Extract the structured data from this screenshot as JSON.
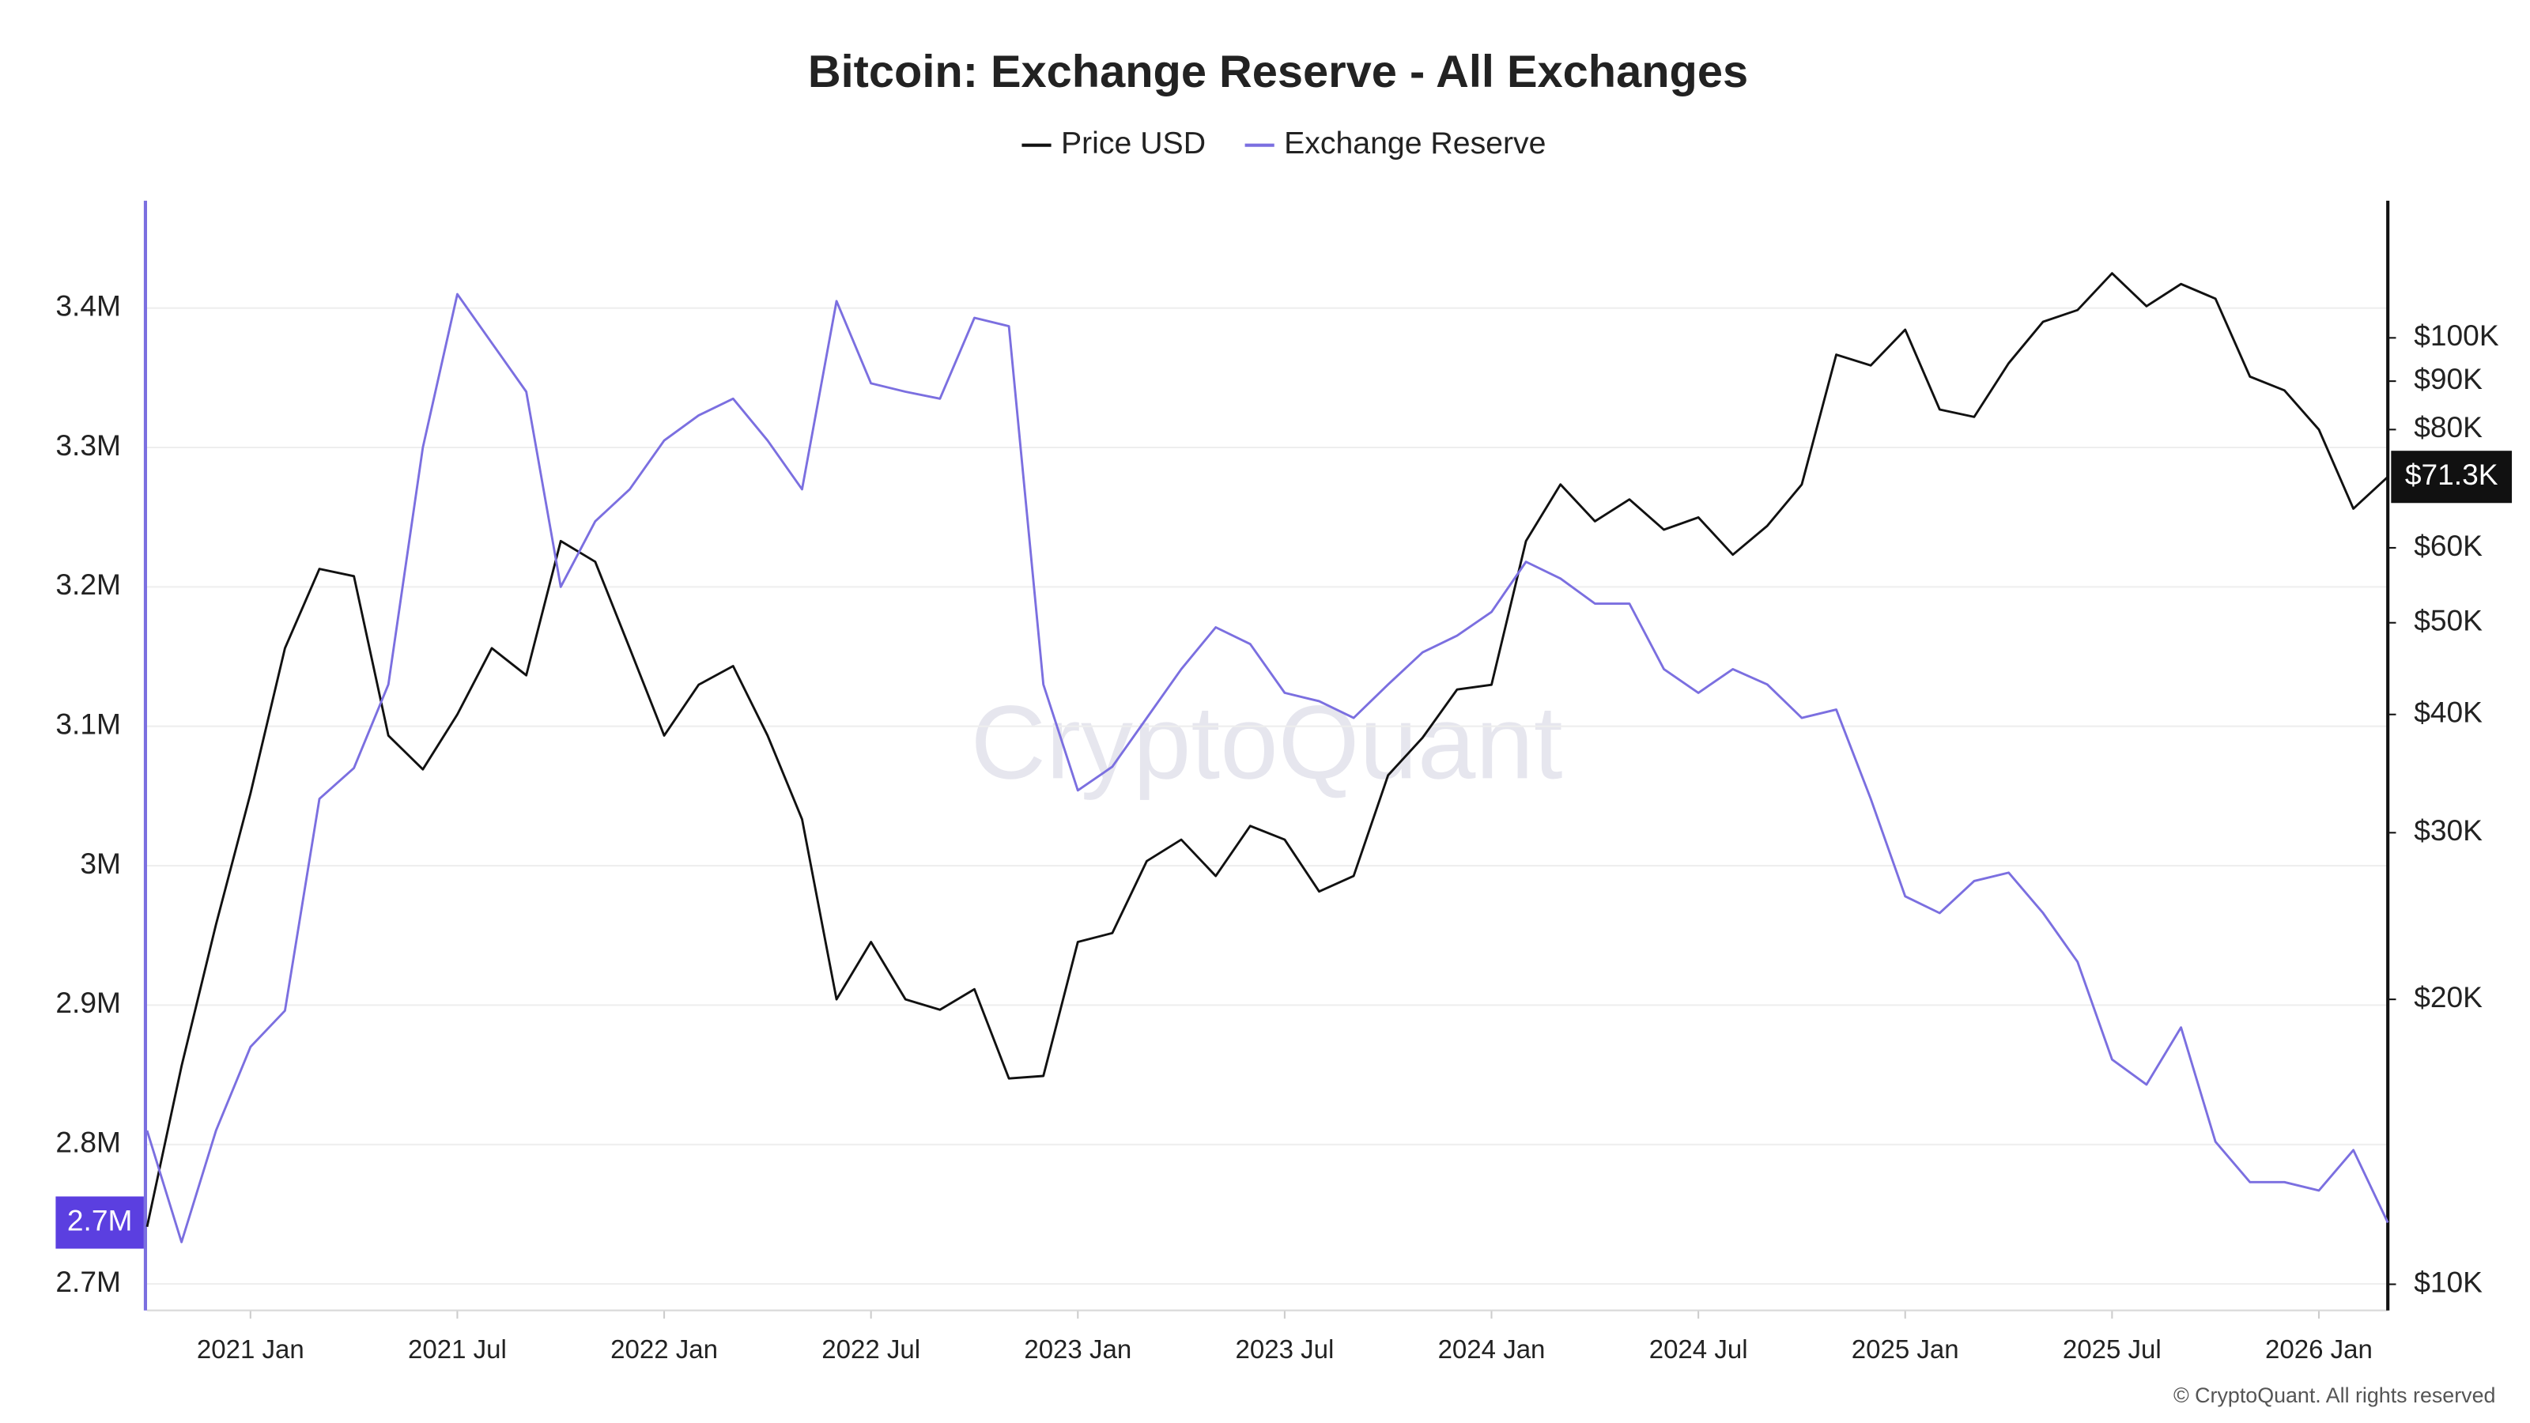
{
  "chart_data": {
    "type": "line",
    "title": "Bitcoin: Exchange Reserve - All Exchanges",
    "watermark": "CryptoQuant",
    "footer": "© CryptoQuant. All rights reserved",
    "x": [
      "2020-10",
      "2020-11",
      "2020-12",
      "2021-01",
      "2021-02",
      "2021-03",
      "2021-04",
      "2021-05",
      "2021-06",
      "2021-07",
      "2021-08",
      "2021-09",
      "2021-10",
      "2021-11",
      "2021-12",
      "2022-01",
      "2022-02",
      "2022-03",
      "2022-04",
      "2022-05",
      "2022-06",
      "2022-07",
      "2022-08",
      "2022-09",
      "2022-10",
      "2022-11",
      "2022-12",
      "2023-01",
      "2023-02",
      "2023-03",
      "2023-04",
      "2023-05",
      "2023-06",
      "2023-07",
      "2023-08",
      "2023-09",
      "2023-10",
      "2023-11",
      "2023-12",
      "2024-01",
      "2024-02",
      "2024-03",
      "2024-04",
      "2024-05",
      "2024-06",
      "2024-07",
      "2024-08",
      "2024-09",
      "2024-10",
      "2024-11",
      "2024-12",
      "2025-01",
      "2025-02",
      "2025-03",
      "2025-04",
      "2025-05",
      "2025-06",
      "2025-07",
      "2025-08",
      "2025-09",
      "2025-10",
      "2025-11",
      "2025-12",
      "2026-01",
      "2026-02",
      "2026-03"
    ],
    "xlim": [
      "2020-10",
      "2026-03"
    ],
    "xticks": [
      {
        "value": "2021-01",
        "label": "2021 Jan"
      },
      {
        "value": "2021-07",
        "label": "2021 Jul"
      },
      {
        "value": "2022-01",
        "label": "2022 Jan"
      },
      {
        "value": "2022-07",
        "label": "2022 Jul"
      },
      {
        "value": "2023-01",
        "label": "2023 Jan"
      },
      {
        "value": "2023-07",
        "label": "2023 Jul"
      },
      {
        "value": "2024-01",
        "label": "2024 Jan"
      },
      {
        "value": "2024-07",
        "label": "2024 Jul"
      },
      {
        "value": "2025-01",
        "label": "2025 Jan"
      },
      {
        "value": "2025-07",
        "label": "2025 Jul"
      },
      {
        "value": "2026-01",
        "label": "2026 Jan"
      }
    ],
    "ylim": [
      2681000,
      3477000
    ],
    "yticks": [
      {
        "value": 2700000,
        "label": "2.7M"
      },
      {
        "value": 2800000,
        "label": "2.8M"
      },
      {
        "value": 2900000,
        "label": "2.9M"
      },
      {
        "value": 3000000,
        "label": "3M"
      },
      {
        "value": 3100000,
        "label": "3.1M"
      },
      {
        "value": 3200000,
        "label": "3.2M"
      },
      {
        "value": 3300000,
        "label": "3.3M"
      },
      {
        "value": 3400000,
        "label": "3.4M"
      }
    ],
    "y2lim": [
      9384,
      139600
    ],
    "y2log": true,
    "y2ticks": [
      {
        "value": 10000,
        "label": "$10K"
      },
      {
        "value": 20000,
        "label": "$20K"
      },
      {
        "value": 30000,
        "label": "$30K"
      },
      {
        "value": 40000,
        "label": "$40K"
      },
      {
        "value": 50000,
        "label": "$50K"
      },
      {
        "value": 60000,
        "label": "$60K"
      },
      {
        "value": 80000,
        "label": "$80K"
      },
      {
        "value": 90000,
        "label": "$90K"
      },
      {
        "value": 100000,
        "label": "$100K"
      }
    ],
    "grid": true,
    "legend": "top",
    "series": [
      {
        "name": "Price USD",
        "color": "#111111",
        "axis": "y2",
        "values": [
          11500,
          17000,
          24000,
          33000,
          47000,
          57000,
          56000,
          38000,
          35000,
          40000,
          47000,
          44000,
          61000,
          58000,
          47000,
          38000,
          43000,
          45000,
          38000,
          31000,
          20000,
          23000,
          20000,
          19500,
          20500,
          16500,
          16600,
          23000,
          23500,
          28000,
          29500,
          27000,
          30500,
          29500,
          26000,
          27000,
          34500,
          37800,
          42500,
          43000,
          61000,
          70000,
          64000,
          67500,
          62700,
          64600,
          59000,
          63300,
          70000,
          96000,
          93500,
          102000,
          84000,
          82500,
          94000,
          104000,
          107000,
          117000,
          108000,
          114000,
          110000,
          91000,
          88000,
          80000,
          66000,
          71300
        ],
        "value_labels": [
          null,
          null,
          null,
          null,
          null,
          null,
          null,
          null,
          null,
          null,
          null,
          null,
          null,
          null,
          null,
          null,
          null,
          null,
          null,
          null,
          null,
          null,
          null,
          null,
          null,
          null,
          null,
          null,
          null,
          null,
          null,
          null,
          null,
          null,
          null,
          null,
          null,
          null,
          null,
          null,
          null,
          null,
          null,
          null,
          null,
          null,
          null,
          null,
          null,
          null,
          null,
          null,
          null,
          null,
          null,
          null,
          null,
          null,
          null,
          null,
          null,
          null,
          null,
          null,
          null,
          "$71.3K"
        ]
      },
      {
        "name": "Exchange Reserve",
        "color": "#7b6fe0",
        "axis": "y",
        "values": [
          2810000,
          2730000,
          2810000,
          2870000,
          2896000,
          3048000,
          3070000,
          3130000,
          3300000,
          3410000,
          3375000,
          3340000,
          3200000,
          3247000,
          3270000,
          3305000,
          3323000,
          3335000,
          3305000,
          3270000,
          3405000,
          3346000,
          3340000,
          3335000,
          3393000,
          3387000,
          3130000,
          3054000,
          3071000,
          3106000,
          3141000,
          3171000,
          3159000,
          3124000,
          3118000,
          3106000,
          3130000,
          3153000,
          3165000,
          3182000,
          3218000,
          3206000,
          3188000,
          3188000,
          3141000,
          3124000,
          3141000,
          3130000,
          3106000,
          3112000,
          3048000,
          2978000,
          2966000,
          2989000,
          2995000,
          2966000,
          2931000,
          2861000,
          2843000,
          2884000,
          2802000,
          2773000,
          2773000,
          2767000,
          2796000,
          2744000
        ],
        "value_labels": [
          null,
          null,
          null,
          null,
          null,
          null,
          null,
          null,
          null,
          null,
          null,
          null,
          null,
          null,
          null,
          null,
          null,
          null,
          null,
          null,
          null,
          null,
          null,
          null,
          null,
          null,
          null,
          null,
          null,
          null,
          null,
          null,
          null,
          null,
          null,
          null,
          null,
          null,
          null,
          null,
          null,
          null,
          null,
          null,
          null,
          null,
          null,
          null,
          null,
          null,
          null,
          null,
          null,
          null,
          null,
          null,
          null,
          null,
          null,
          null,
          null,
          null,
          null,
          null,
          null,
          "2.7M"
        ]
      }
    ]
  }
}
